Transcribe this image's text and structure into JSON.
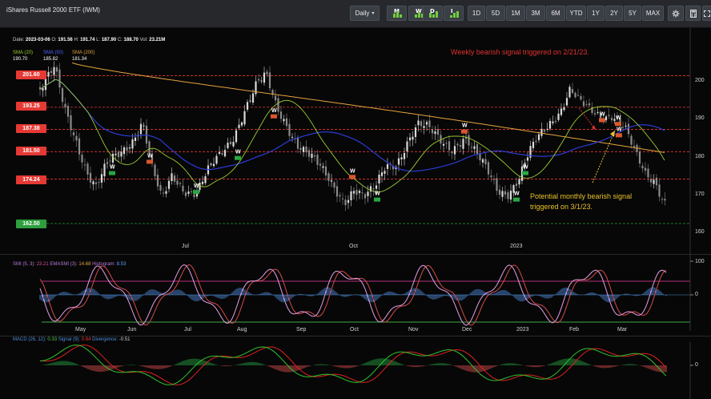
{
  "window": {
    "title": "iShares Russell 2000 ETF (IWM)"
  },
  "toolbar": {
    "interval_label": "Daily",
    "timeframe_icons": [
      {
        "letter": "M",
        "name": "monthly"
      },
      {
        "letter": "W",
        "name": "weekly"
      },
      {
        "letter": "D",
        "name": "daily"
      },
      {
        "letter": "I",
        "name": "intraday"
      }
    ],
    "ranges": [
      "1D",
      "5D",
      "1M",
      "3M",
      "6M",
      "YTD",
      "1Y",
      "2Y",
      "5Y",
      "MAX"
    ],
    "icons": [
      "settings-icon",
      "calculator-icon",
      "fullscreen-icon"
    ]
  },
  "ohlc": {
    "date_label": "Date:",
    "date": "2023-03-06",
    "o_label": "O:",
    "o": "191.56",
    "h_label": "H:",
    "h": "191.74",
    "l_label": "L:",
    "l": "187.90",
    "c_label": "C:",
    "c": "188.70",
    "vol_label": "Vol:",
    "vol": "23.21M"
  },
  "sma_legend": [
    {
      "label": "SMA (20)",
      "value": "190.70",
      "color": "#9acd32"
    },
    {
      "label": "SMA (50)",
      "value": "185.82",
      "color": "#2b3bd6"
    },
    {
      "label": "SMA (200)",
      "value": "181.34",
      "color": "#e6a23c"
    }
  ],
  "price_levels": [
    {
      "label": "201.60",
      "color": "#e53935"
    },
    {
      "label": "193.25",
      "color": "#e53935"
    },
    {
      "label": "187.38",
      "color": "#e53935"
    },
    {
      "label": "181.50",
      "color": "#e53935"
    },
    {
      "label": "174.24",
      "color": "#e53935"
    },
    {
      "label": "162.50",
      "color": "#2e9e3e"
    }
  ],
  "price_axis": [
    "200",
    "190",
    "180",
    "170",
    "160"
  ],
  "top_xaxis": [
    "Jul",
    "Oct",
    "2023"
  ],
  "annotations": {
    "weekly": "Weekly bearish signal triggered on 2/21/23.",
    "monthly_line1": "Potential monthly bearish signal",
    "monthly_line2": "triggered on 3/1/23."
  },
  "smi_legend": {
    "label": "SMI (5, 3):",
    "value": "23.21",
    "ema_label": "EMASMI (3):",
    "ema_value": "14.68",
    "hist_label": "Histogram:",
    "hist_value": "8.53"
  },
  "smi_axis": [
    "100",
    "0"
  ],
  "month_axis": [
    "May",
    "Jun",
    "Jul",
    "Aug",
    "Sep",
    "Oct",
    "Nov",
    "Dec",
    "2023",
    "Feb",
    "Mar"
  ],
  "macd_legend": {
    "label": "MACD (26, 12):",
    "value": "0.33",
    "signal_label": "Signal (9):",
    "signal_value": "0.84",
    "div_label": "Divergence:",
    "div_value": "-0.51"
  },
  "macd_axis": [
    "0"
  ],
  "signal_marker": "W",
  "colors": {
    "bull": "#27a844",
    "bear": "#e53935",
    "annotation_red": "#e0312f",
    "annotation_yellow": "#e8c12a"
  }
}
